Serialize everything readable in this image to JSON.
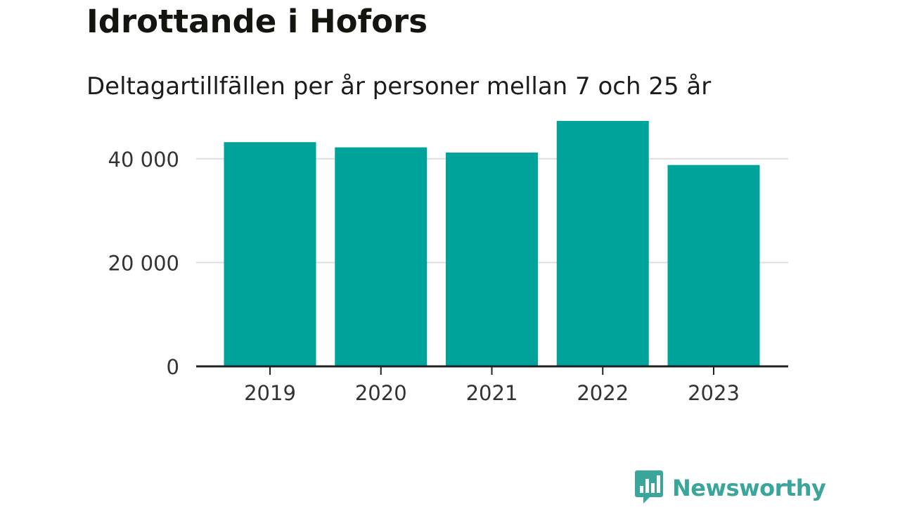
{
  "header": {
    "title": "Idrottande i Hofors",
    "subtitle": "Deltagartillfällen per år personer mellan 7 och 25 år"
  },
  "brand": {
    "name": "Newsworthy",
    "logo_icon": "newsworthy-chat-bar-icon",
    "color": "#3aa59a"
  },
  "colors": {
    "bar": "#00a39a",
    "grid": "#dddddd",
    "axis": "#222222",
    "tick_text": "#333333"
  },
  "chart_data": {
    "type": "bar",
    "title": "Idrottande i Hofors",
    "subtitle": "Deltagartillfällen per år personer mellan 7 och 25 år",
    "xlabel": "",
    "ylabel": "",
    "categories": [
      "2019",
      "2020",
      "2021",
      "2022",
      "2023"
    ],
    "values": [
      43200,
      42200,
      41200,
      47300,
      38800
    ],
    "ylim": [
      0,
      50000
    ],
    "yticks": [
      0,
      20000,
      40000
    ],
    "ytick_labels": [
      "0",
      "20 000",
      "40 000"
    ],
    "grid": true,
    "legend": "none"
  }
}
